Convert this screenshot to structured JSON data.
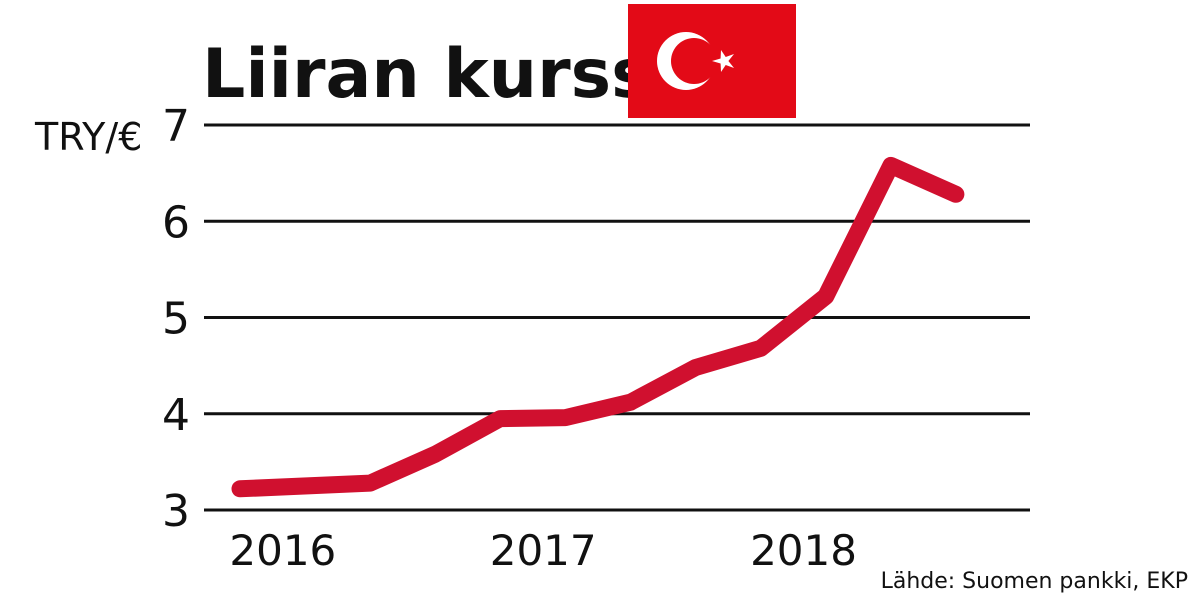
{
  "chart_data": {
    "type": "line",
    "title": "Liiran kurssi",
    "ylabel": "TRY/€",
    "source": "Lähde: Suomen pankki, EKP",
    "ylim": [
      3,
      7
    ],
    "y_ticks": [
      {
        "value": 3,
        "label": "3"
      },
      {
        "value": 4,
        "label": "4"
      },
      {
        "value": 5,
        "label": "5"
      },
      {
        "value": 6,
        "label": "6"
      },
      {
        "value": 7,
        "label": "7"
      }
    ],
    "x_ticks": [
      {
        "value": 2016.0,
        "label": "2016"
      },
      {
        "value": 2017.0,
        "label": "2017"
      },
      {
        "value": 2018.0,
        "label": "2018"
      }
    ],
    "xlim": [
      2015.92,
      2018.82
    ],
    "grid": true,
    "series": [
      {
        "color": "#d0102f",
        "x": [
          2015.92,
          2016.42,
          2016.67,
          2016.92,
          2017.17,
          2017.42,
          2017.67,
          2017.92,
          2018.17,
          2018.42,
          2018.67
        ],
        "values": [
          3.22,
          3.28,
          3.58,
          3.95,
          3.96,
          4.12,
          4.48,
          4.68,
          5.22,
          6.58,
          6.28
        ]
      }
    ],
    "flag": {
      "name": "turkey-flag",
      "color": "#e30a17"
    }
  }
}
